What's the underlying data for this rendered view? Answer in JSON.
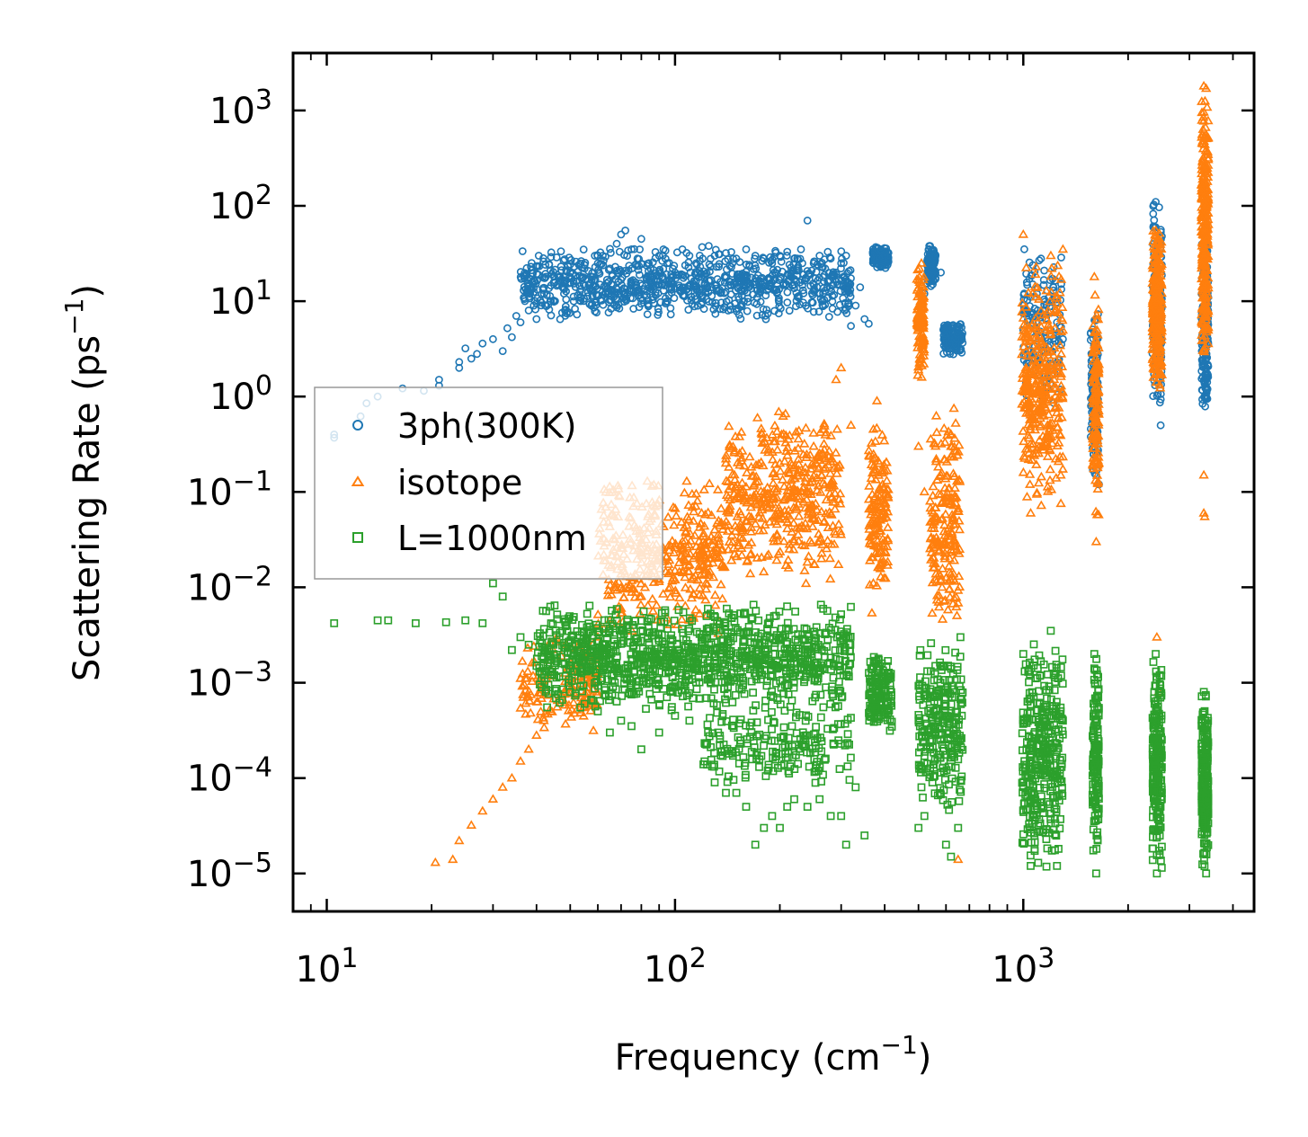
{
  "chart_data": {
    "type": "scatter",
    "xscale": "log",
    "yscale": "log",
    "xlim": [
      8,
      4600
    ],
    "ylim": [
      4e-06,
      4000
    ],
    "xlabel": "Frequency (cm",
    "xlabel_sup": "−1",
    "xlabel_close": ")",
    "ylabel": "Scattering Rate (ps",
    "ylabel_sup": "−1",
    "ylabel_close": ")",
    "x_ticks": [
      {
        "value": 10,
        "base": "10",
        "exp": "1"
      },
      {
        "value": 100,
        "base": "10",
        "exp": "2"
      },
      {
        "value": 1000,
        "base": "10",
        "exp": "3"
      }
    ],
    "y_ticks": [
      {
        "value": 1000,
        "base": "10",
        "exp": "3"
      },
      {
        "value": 100,
        "base": "10",
        "exp": "2"
      },
      {
        "value": 10,
        "base": "10",
        "exp": "1"
      },
      {
        "value": 1,
        "base": "10",
        "exp": "0"
      },
      {
        "value": 0.1,
        "base": "10",
        "exp": "−1"
      },
      {
        "value": 0.01,
        "base": "10",
        "exp": "−2"
      },
      {
        "value": 0.001,
        "base": "10",
        "exp": "−3"
      },
      {
        "value": 0.0001,
        "base": "10",
        "exp": "−4"
      },
      {
        "value": 1e-05,
        "base": "10",
        "exp": "−5"
      }
    ],
    "legend_position": "center-left",
    "series": [
      {
        "name": "3ph(300K)",
        "marker": "circle",
        "color": "#1f77b4",
        "points": [
          [
            10.5,
            0.4
          ],
          [
            10.5,
            0.37
          ],
          [
            12.5,
            0.62
          ],
          [
            13,
            0.85
          ],
          [
            14,
            1.0
          ],
          [
            16.5,
            1.22
          ],
          [
            19,
            1.15
          ],
          [
            21,
            1.5
          ],
          [
            21,
            1.3
          ],
          [
            24,
            2.0
          ],
          [
            24,
            2.3
          ],
          [
            25,
            3.2
          ],
          [
            26,
            2.5
          ],
          [
            27,
            2.8
          ],
          [
            28,
            3.6
          ],
          [
            30,
            4.0
          ],
          [
            32,
            3.0
          ],
          [
            33,
            5.2
          ],
          [
            34,
            4.2
          ],
          [
            35,
            7.0
          ],
          [
            36,
            6.0
          ],
          [
            38,
            8.0
          ],
          [
            40,
            9.5
          ],
          [
            40,
            6.5
          ],
          [
            42,
            12
          ],
          [
            44,
            10
          ],
          [
            46,
            15
          ],
          [
            48,
            18
          ],
          [
            48,
            12
          ],
          [
            50,
            20
          ],
          [
            52,
            16
          ],
          [
            55,
            22
          ],
          [
            58,
            18
          ],
          [
            60,
            25
          ],
          [
            62,
            30
          ],
          [
            65,
            22
          ],
          [
            68,
            40
          ],
          [
            70,
            50
          ],
          [
            72,
            55
          ],
          [
            75,
            35
          ],
          [
            78,
            28
          ],
          [
            80,
            45
          ],
          [
            85,
            22
          ],
          [
            90,
            30
          ],
          [
            95,
            25
          ],
          [
            100,
            20
          ],
          [
            105,
            35
          ],
          [
            110,
            30
          ],
          [
            115,
            25
          ],
          [
            120,
            28
          ],
          [
            125,
            38
          ],
          [
            130,
            30
          ],
          [
            140,
            32
          ],
          [
            150,
            28
          ],
          [
            160,
            35
          ],
          [
            170,
            30
          ],
          [
            180,
            28
          ],
          [
            190,
            25
          ],
          [
            200,
            30
          ],
          [
            210,
            33
          ],
          [
            220,
            28
          ],
          [
            230,
            35
          ],
          [
            240,
            70
          ],
          [
            250,
            25
          ],
          [
            260,
            30
          ],
          [
            270,
            22
          ],
          [
            280,
            28
          ],
          [
            290,
            20
          ],
          [
            300,
            25
          ],
          [
            310,
            30
          ],
          [
            320,
            5.5
          ],
          [
            330,
            9
          ],
          [
            340,
            14
          ],
          [
            350,
            6.5
          ],
          [
            360,
            5.8
          ],
          [
            370,
            32
          ],
          [
            380,
            28
          ],
          [
            390,
            35
          ],
          [
            400,
            30
          ],
          [
            410,
            26
          ],
          [
            520,
            12
          ],
          [
            540,
            38
          ],
          [
            560,
            30
          ],
          [
            580,
            20
          ],
          [
            590,
            5
          ],
          [
            600,
            4.2
          ],
          [
            620,
            3.8
          ],
          [
            640,
            3.5
          ],
          [
            660,
            4.0
          ],
          [
            1000,
            5
          ],
          [
            1050,
            3
          ],
          [
            1100,
            8
          ],
          [
            1200,
            5
          ],
          [
            1250,
            6
          ],
          [
            1300,
            4
          ],
          [
            1600,
            0.3
          ],
          [
            1620,
            0.15
          ],
          [
            1650,
            0.12
          ],
          [
            2400,
            110
          ],
          [
            2420,
            40
          ],
          [
            2450,
            5
          ],
          [
            2480,
            0.5
          ],
          [
            3300,
            20
          ],
          [
            3330,
            5
          ],
          [
            3350,
            1.5
          ],
          [
            3380,
            1.2
          ]
        ],
        "clusters": [
          {
            "x": [
              36,
              320
            ],
            "y": [
              6,
              38
            ],
            "n": 900
          },
          {
            "x": [
              370,
              410
            ],
            "y": [
              22,
              38
            ],
            "n": 120
          },
          {
            "x": [
              530,
              560
            ],
            "y": [
              14,
              40
            ],
            "n": 120
          },
          {
            "x": [
              590,
              670
            ],
            "y": [
              2.6,
              6
            ],
            "n": 140
          },
          {
            "x": [
              1000,
              1290
            ],
            "y": [
              0.8,
              40
            ],
            "n": 160
          },
          {
            "x": [
              1560,
              1640
            ],
            "y": [
              0.12,
              9
            ],
            "n": 130
          },
          {
            "x": [
              2350,
              2500
            ],
            "y": [
              0.5,
              110
            ],
            "n": 180
          },
          {
            "x": [
              3250,
              3400
            ],
            "y": [
              0.6,
              45
            ],
            "n": 180
          }
        ]
      },
      {
        "name": "isotope",
        "marker": "triangle",
        "color": "#ff7f0e",
        "points": [
          [
            20.5,
            1.3e-05
          ],
          [
            23,
            1.4e-05
          ],
          [
            24,
            2.2e-05
          ],
          [
            26,
            3.2e-05
          ],
          [
            28,
            4.5e-05
          ],
          [
            30,
            6e-05
          ],
          [
            32,
            8e-05
          ],
          [
            34,
            0.0001
          ],
          [
            36,
            0.00015
          ],
          [
            38,
            0.0002
          ],
          [
            40,
            0.00028
          ],
          [
            42,
            0.0004
          ],
          [
            44,
            0.0005
          ],
          [
            46,
            0.00065
          ],
          [
            48,
            0.0008
          ],
          [
            50,
            0.0011
          ],
          [
            52,
            0.0015
          ],
          [
            55,
            0.002
          ],
          [
            58,
            0.0025
          ],
          [
            60,
            0.003
          ],
          [
            65,
            0.0045
          ],
          [
            70,
            0.006
          ],
          [
            80,
            0.008
          ],
          [
            90,
            0.012
          ],
          [
            100,
            0.015
          ],
          [
            120,
            0.02
          ],
          [
            130,
            0.04
          ],
          [
            140,
            0.2
          ],
          [
            160,
            0.05
          ],
          [
            180,
            0.1
          ],
          [
            200,
            0.2
          ],
          [
            250,
            0.3
          ],
          [
            290,
            1.5
          ],
          [
            300,
            2.0
          ],
          [
            320,
            0.5
          ],
          [
            380,
            0.9
          ],
          [
            500,
            0.3
          ],
          [
            510,
            25
          ],
          [
            520,
            0.1
          ],
          [
            600,
            0.08
          ],
          [
            620,
            0.3
          ],
          [
            650,
            1.4e-05
          ],
          [
            1000,
            50
          ],
          [
            1050,
            0.06
          ],
          [
            1200,
            30
          ],
          [
            1300,
            35
          ],
          [
            1600,
            18
          ],
          [
            1620,
            0.03
          ],
          [
            2400,
            55
          ],
          [
            2420,
            0.003
          ],
          [
            2450,
            0.0008
          ],
          [
            3300,
            1800
          ],
          [
            3350,
            1700
          ],
          [
            3300,
            0.06
          ],
          [
            3320,
            0.055
          ],
          [
            3300,
            0.15
          ]
        ],
        "clusters": [
          {
            "x": [
              36,
              60
            ],
            "y": [
              0.0003,
              0.003
            ],
            "n": 150
          },
          {
            "x": [
              60,
              140
            ],
            "y": [
              0.003,
              0.15
            ],
            "n": 400
          },
          {
            "x": [
              140,
              300
            ],
            "y": [
              0.01,
              0.8
            ],
            "n": 450
          },
          {
            "x": [
              360,
              410
            ],
            "y": [
              0.005,
              0.6
            ],
            "n": 150
          },
          {
            "x": [
              495,
              520
            ],
            "y": [
              1.5,
              25
            ],
            "n": 120
          },
          {
            "x": [
              540,
              660
            ],
            "y": [
              0.003,
              0.8
            ],
            "n": 200
          },
          {
            "x": [
              990,
              1300
            ],
            "y": [
              0.05,
              30
            ],
            "n": 350
          },
          {
            "x": [
              1580,
              1650
            ],
            "y": [
              0.05,
              15
            ],
            "n": 140
          },
          {
            "x": [
              2350,
              2500
            ],
            "y": [
              1,
              60
            ],
            "n": 250
          },
          {
            "x": [
              3250,
              3400
            ],
            "y": [
              2,
              1800
            ],
            "n": 300
          }
        ]
      },
      {
        "name": "L=1000nm",
        "marker": "square",
        "color": "#2ca02c",
        "points": [
          [
            10.5,
            0.0042
          ],
          [
            14,
            0.0045
          ],
          [
            15,
            0.0045
          ],
          [
            18,
            0.0042
          ],
          [
            22,
            0.0043
          ],
          [
            25,
            0.0045
          ],
          [
            28,
            0.0042
          ],
          [
            30,
            0.011
          ],
          [
            32,
            0.008
          ],
          [
            34,
            0.0022
          ],
          [
            36,
            0.003
          ],
          [
            38,
            0.0025
          ],
          [
            40,
            0.0015
          ],
          [
            45,
            0.0012
          ],
          [
            50,
            0.0008
          ],
          [
            55,
            0.0006
          ],
          [
            60,
            0.0005
          ],
          [
            65,
            0.0003
          ],
          [
            70,
            0.0004
          ],
          [
            75,
            0.00035
          ],
          [
            80,
            0.0002
          ],
          [
            90,
            0.0003
          ],
          [
            100,
            0.00045
          ],
          [
            110,
            0.0004
          ],
          [
            130,
            9e-05
          ],
          [
            140,
            7e-05
          ],
          [
            150,
            7e-05
          ],
          [
            160,
            5e-05
          ],
          [
            170,
            2e-05
          ],
          [
            180,
            3e-05
          ],
          [
            190,
            4e-05
          ],
          [
            200,
            3e-05
          ],
          [
            210,
            5e-05
          ],
          [
            220,
            6e-05
          ],
          [
            240,
            5e-05
          ],
          [
            260,
            6e-05
          ],
          [
            280,
            4e-05
          ],
          [
            300,
            4e-05
          ],
          [
            310,
            2e-05
          ],
          [
            330,
            8e-05
          ],
          [
            350,
            2.5e-05
          ],
          [
            400,
            0.0005
          ],
          [
            500,
            3e-05
          ],
          [
            510,
            8e-05
          ],
          [
            520,
            4e-05
          ],
          [
            600,
            2e-05
          ],
          [
            620,
            1.5e-05
          ],
          [
            650,
            3e-05
          ],
          [
            660,
            0.003
          ],
          [
            1000,
            0.002
          ],
          [
            1050,
            1.2e-05
          ],
          [
            1200,
            0.0035
          ],
          [
            1250,
            1.2e-05
          ],
          [
            1300,
            0.0004
          ],
          [
            1600,
            0.002
          ],
          [
            1620,
            1e-05
          ],
          [
            2400,
            0.002
          ],
          [
            2420,
            1e-05
          ],
          [
            3300,
            0.0008
          ],
          [
            3350,
            1e-05
          ]
        ],
        "clusters": [
          {
            "x": [
              40,
              320
            ],
            "y": [
              0.0005,
              0.007
            ],
            "n": 1100
          },
          {
            "x": [
              120,
              320
            ],
            "y": [
              8e-05,
              0.0006
            ],
            "n": 200
          },
          {
            "x": [
              360,
              420
            ],
            "y": [
              0.0003,
              0.002
            ],
            "n": 150
          },
          {
            "x": [
              500,
              670
            ],
            "y": [
              4e-05,
              0.003
            ],
            "n": 250
          },
          {
            "x": [
              990,
              1300
            ],
            "y": [
              1e-05,
              0.003
            ],
            "n": 350
          },
          {
            "x": [
              1580,
              1650
            ],
            "y": [
              1e-05,
              0.002
            ],
            "n": 150
          },
          {
            "x": [
              2350,
              2500
            ],
            "y": [
              1e-05,
              0.002
            ],
            "n": 220
          },
          {
            "x": [
              3250,
              3400
            ],
            "y": [
              1e-05,
              0.0008
            ],
            "n": 220
          }
        ]
      }
    ]
  }
}
